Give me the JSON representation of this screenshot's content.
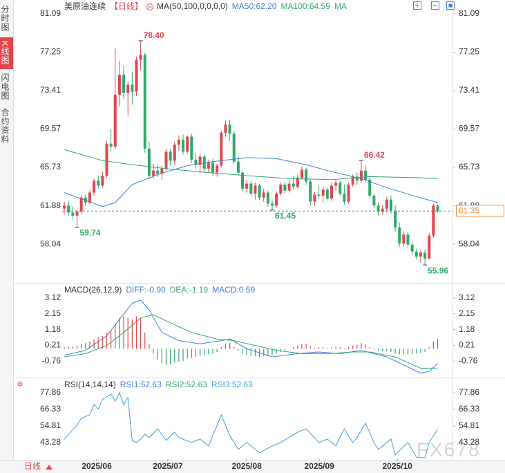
{
  "sidebar_tabs": [
    "分时图",
    "K线图",
    "闪电图",
    "合约资料"
  ],
  "bottom_bar": {
    "period": "日线"
  },
  "watermark": "FX678",
  "chart_data": [
    {
      "type": "candlestick",
      "title": "美原油连续",
      "period_tag": "【日线】",
      "ma_label": "MA(50,100,0,0,0,0)",
      "ma_more": "MA",
      "up_color": "#e0464e",
      "down_color": "#2fa86a",
      "xlim": [
        -11.9,
        91.5
      ],
      "ylim": [
        54.24,
        81.23
      ],
      "yticks": [
        81.09,
        77.25,
        73.41,
        69.57,
        65.73,
        61.88,
        58.04
      ],
      "candles": [
        [
          61.6,
          62.3,
          61.0,
          61.9
        ],
        [
          61.9,
          62.4,
          60.9,
          61.2
        ],
        [
          61.2,
          61.8,
          60.5,
          60.9
        ],
        [
          60.9,
          61.5,
          59.74,
          61.3
        ],
        [
          61.3,
          62.9,
          61.1,
          62.7
        ],
        [
          62.7,
          63.0,
          61.9,
          62.2
        ],
        [
          62.2,
          63.4,
          62.0,
          63.2
        ],
        [
          63.2,
          64.6,
          62.9,
          64.4
        ],
        [
          64.4,
          64.9,
          63.6,
          63.9
        ],
        [
          63.9,
          65.3,
          63.7,
          64.9
        ],
        [
          64.9,
          68.4,
          64.7,
          68.1
        ],
        [
          68.1,
          69.6,
          67.3,
          67.8
        ],
        [
          67.8,
          77.6,
          67.5,
          73.0
        ],
        [
          73.0,
          76.4,
          71.8,
          75.0
        ],
        [
          75.0,
          75.9,
          72.6,
          73.2
        ],
        [
          73.2,
          74.3,
          70.9,
          74.0
        ],
        [
          74.0,
          75.3,
          72.0,
          73.3
        ],
        [
          73.3,
          76.8,
          72.9,
          76.5
        ],
        [
          76.5,
          78.4,
          75.4,
          77.0
        ],
        [
          77.0,
          77.2,
          67.2,
          67.6
        ],
        [
          67.6,
          68.3,
          64.5,
          64.9
        ],
        [
          64.9,
          66.1,
          64.6,
          65.4
        ],
        [
          65.4,
          66.0,
          64.8,
          65.1
        ],
        [
          65.1,
          65.9,
          64.5,
          65.6
        ],
        [
          65.6,
          67.6,
          65.4,
          67.3
        ],
        [
          67.3,
          67.6,
          65.9,
          66.4
        ],
        [
          66.4,
          68.3,
          66.0,
          68.0
        ],
        [
          68.0,
          68.9,
          67.4,
          68.5
        ],
        [
          68.5,
          69.0,
          67.0,
          67.3
        ],
        [
          67.3,
          68.9,
          67.1,
          68.8
        ],
        [
          68.8,
          69.1,
          66.2,
          66.5
        ],
        [
          66.5,
          67.2,
          65.6,
          66.0
        ],
        [
          66.0,
          67.1,
          65.1,
          66.8
        ],
        [
          66.8,
          67.0,
          65.2,
          65.6
        ],
        [
          65.6,
          66.5,
          65.2,
          66.2
        ],
        [
          66.2,
          66.6,
          64.9,
          65.2
        ],
        [
          65.2,
          66.1,
          64.8,
          65.9
        ],
        [
          65.9,
          69.4,
          65.7,
          69.2
        ],
        [
          69.2,
          70.4,
          68.8,
          70.0
        ],
        [
          70.0,
          70.5,
          68.4,
          69.1
        ],
        [
          69.1,
          69.4,
          66.0,
          66.3
        ],
        [
          66.3,
          66.8,
          64.9,
          65.2
        ],
        [
          65.2,
          65.4,
          63.3,
          63.6
        ],
        [
          63.6,
          64.5,
          63.2,
          64.1
        ],
        [
          64.1,
          64.4,
          62.8,
          63.1
        ],
        [
          63.1,
          64.2,
          62.5,
          63.9
        ],
        [
          63.9,
          64.1,
          62.5,
          62.7
        ],
        [
          62.7,
          63.6,
          62.3,
          63.2
        ],
        [
          63.2,
          63.4,
          61.8,
          62.1
        ],
        [
          62.1,
          62.4,
          61.45,
          61.9
        ],
        [
          61.9,
          63.3,
          61.7,
          63.1
        ],
        [
          63.1,
          64.2,
          62.9,
          64.0
        ],
        [
          64.0,
          64.3,
          63.1,
          63.4
        ],
        [
          63.4,
          64.5,
          63.2,
          64.1
        ],
        [
          64.1,
          64.9,
          63.5,
          63.8
        ],
        [
          63.8,
          65.0,
          63.6,
          64.7
        ],
        [
          64.7,
          65.8,
          64.5,
          65.5
        ],
        [
          65.5,
          65.7,
          64.0,
          64.3
        ],
        [
          64.3,
          64.6,
          61.9,
          62.3
        ],
        [
          62.3,
          63.3,
          61.9,
          63.0
        ],
        [
          63.0,
          63.9,
          62.6,
          62.9
        ],
        [
          62.9,
          63.8,
          62.2,
          63.5
        ],
        [
          63.5,
          63.7,
          62.4,
          62.6
        ],
        [
          62.6,
          64.2,
          62.4,
          63.9
        ],
        [
          63.9,
          64.5,
          63.4,
          64.2
        ],
        [
          64.2,
          64.4,
          62.9,
          63.1
        ],
        [
          63.1,
          64.0,
          62.0,
          62.3
        ],
        [
          62.3,
          64.2,
          62.1,
          64.0
        ],
        [
          64.0,
          65.0,
          63.8,
          64.8
        ],
        [
          64.8,
          65.2,
          64.0,
          64.4
        ],
        [
          64.4,
          66.42,
          64.2,
          65.4
        ],
        [
          65.4,
          65.9,
          64.2,
          64.5
        ],
        [
          64.5,
          64.8,
          62.6,
          62.9
        ],
        [
          62.9,
          63.1,
          61.6,
          61.9
        ],
        [
          61.9,
          62.2,
          60.9,
          61.3
        ],
        [
          61.3,
          62.0,
          61.0,
          61.6
        ],
        [
          61.6,
          62.8,
          61.2,
          62.5
        ],
        [
          62.5,
          62.9,
          61.1,
          61.4
        ],
        [
          61.4,
          61.9,
          59.3,
          59.7
        ],
        [
          59.7,
          60.2,
          57.8,
          58.1
        ],
        [
          58.1,
          59.3,
          57.8,
          59.0
        ],
        [
          59.0,
          59.3,
          57.7,
          58.0
        ],
        [
          58.0,
          58.3,
          57.0,
          57.3
        ],
        [
          57.3,
          57.6,
          56.5,
          56.8
        ],
        [
          56.8,
          57.4,
          56.2,
          57.2
        ],
        [
          57.2,
          57.5,
          55.96,
          56.6
        ],
        [
          56.6,
          59.2,
          56.5,
          58.9
        ],
        [
          58.9,
          62.1,
          58.7,
          61.9
        ],
        [
          61.9,
          62.0,
          61.2,
          61.35
        ]
      ],
      "annotations": [
        {
          "x": 18,
          "value": 78.4,
          "label": "78.40"
        },
        {
          "x": 3,
          "value": 59.74,
          "label": "59.74"
        },
        {
          "x": 49,
          "value": 61.45,
          "label": "61.45"
        },
        {
          "x": 70,
          "value": 66.42,
          "label": "66.42"
        },
        {
          "x": 85,
          "value": 55.96,
          "label": "55.96"
        }
      ],
      "series": [
        {
          "name": "MA50:62.20",
          "color": "#3d7fd6",
          "x": [
            0,
            9,
            12,
            16,
            22,
            29,
            35,
            43,
            50,
            57,
            63,
            70,
            76,
            83,
            88
          ],
          "values": [
            63.2,
            61.8,
            62.2,
            64.0,
            65.0,
            65.9,
            66.3,
            66.7,
            66.6,
            66.0,
            65.3,
            64.6,
            63.7,
            62.8,
            62.2
          ]
        },
        {
          "name": "MA100:64.59",
          "color": "#2fa86a",
          "x": [
            0,
            9,
            16,
            24,
            34,
            43,
            53,
            63,
            72,
            83,
            88
          ],
          "values": [
            67.5,
            66.4,
            66.0,
            65.6,
            65.2,
            64.9,
            64.6,
            64.5,
            64.8,
            64.7,
            64.59
          ]
        }
      ]
    },
    {
      "type": "macd",
      "title": "MACD(26,12,9)",
      "xlim": [
        -11.9,
        91.5
      ],
      "ylim": [
        -1.73,
        3.93
      ],
      "yticks": [
        3.12,
        2.15,
        1.18,
        0.21,
        -0.76
      ],
      "histogram_name": "MACD:0.59",
      "histogram_color": "#3d7fd6",
      "up_color": "#e0464e",
      "down_color": "#2fa86a",
      "histogram": [
        0.1,
        0.15,
        0.12,
        0.2,
        0.3,
        0.35,
        0.45,
        0.6,
        0.7,
        0.8,
        1.0,
        1.1,
        1.5,
        1.9,
        2.0,
        1.9,
        1.8,
        2.0,
        1.9,
        1.0,
        0.3,
        -0.3,
        -0.7,
        -0.9,
        -1.0,
        -0.95,
        -0.85,
        -0.8,
        -0.75,
        -0.6,
        -0.55,
        -0.5,
        -0.45,
        -0.4,
        -0.35,
        -0.3,
        -0.2,
        0.1,
        0.3,
        0.35,
        0.1,
        -0.1,
        -0.3,
        -0.4,
        -0.45,
        -0.45,
        -0.5,
        -0.45,
        -0.45,
        -0.4,
        -0.3,
        -0.2,
        -0.1,
        0.0,
        0.1,
        0.2,
        0.3,
        0.3,
        0.15,
        0.05,
        0.1,
        0.1,
        0.05,
        0.1,
        0.15,
        0.1,
        0.05,
        0.1,
        0.2,
        0.25,
        0.35,
        0.25,
        0.1,
        -0.05,
        -0.1,
        -0.15,
        -0.15,
        -0.2,
        -0.3,
        -0.35,
        -0.35,
        -0.35,
        -0.35,
        -0.3,
        -0.25,
        -0.2,
        0.1,
        0.45,
        0.59
      ],
      "series": [
        {
          "name": "DIFF:-0.90",
          "color": "#3d7fd6",
          "x": [
            0,
            5,
            10,
            13,
            16,
            18,
            20,
            23,
            27,
            32,
            37,
            39,
            43,
            49,
            55,
            60,
            65,
            70,
            76,
            80,
            84,
            86,
            88
          ],
          "values": [
            -0.4,
            -0.1,
            0.8,
            1.8,
            2.8,
            3.0,
            2.4,
            1.0,
            0.5,
            0.3,
            0.5,
            0.6,
            0.0,
            -0.5,
            -0.3,
            -0.2,
            -0.3,
            -0.1,
            -0.5,
            -1.0,
            -1.5,
            -1.4,
            -0.9
          ]
        },
        {
          "name": "DEA:-1.19",
          "color": "#2fa86a",
          "x": [
            0,
            5,
            10,
            14,
            18,
            21,
            25,
            30,
            36,
            40,
            45,
            50,
            56,
            62,
            68,
            72,
            78,
            84,
            88
          ],
          "values": [
            -0.5,
            -0.3,
            0.2,
            1.0,
            1.9,
            2.1,
            1.6,
            1.0,
            0.6,
            0.5,
            0.2,
            -0.1,
            -0.3,
            -0.3,
            -0.2,
            -0.2,
            -0.5,
            -1.2,
            -1.19
          ]
        }
      ]
    },
    {
      "type": "rsi",
      "title": "RSI(14,14,14)",
      "xlim": [
        -11.9,
        91.5
      ],
      "ylim": [
        31.74,
        87.47
      ],
      "yticks": [
        77.86,
        66.33,
        54.81,
        43.28
      ],
      "legend": [
        {
          "name": "RSI1:52.63",
          "color": "#3d7fd6"
        },
        {
          "name": "RSI2:52.63",
          "color": "#2fa86a"
        },
        {
          "name": "RSI3:52.63",
          "color": "#3d9fd6"
        }
      ],
      "xticks": [
        {
          "value": 7.65,
          "label": "2025/06"
        },
        {
          "value": 24.4,
          "label": "2025/07"
        },
        {
          "value": 43.0,
          "label": "2025/08"
        },
        {
          "value": 60.1,
          "label": "2025/09"
        },
        {
          "value": 78.5,
          "label": "2025/10"
        }
      ],
      "series": [
        {
          "name": "RSI1:52.63",
          "color": "#3d9fd6",
          "x": [
            0,
            1,
            3,
            4,
            6,
            7,
            8,
            9,
            11,
            12,
            13,
            14,
            15,
            16,
            17,
            18,
            19,
            20,
            22,
            24,
            26,
            27,
            30,
            32,
            34,
            37,
            39,
            41,
            43,
            46,
            49,
            51,
            55,
            57,
            60,
            62,
            64,
            66,
            68,
            69,
            71,
            73,
            74,
            77,
            78,
            81,
            83,
            85,
            86,
            88
          ],
          "values": [
            45.6,
            49.1,
            55.4,
            60.2,
            62.6,
            69.9,
            66.5,
            73.2,
            77.0,
            72.1,
            77.9,
            69.7,
            74.5,
            44.7,
            43.3,
            45.7,
            49.1,
            46.7,
            52.9,
            44.7,
            50.5,
            46.7,
            43.3,
            45.7,
            40.9,
            62.5,
            48.1,
            38.5,
            43.3,
            36.2,
            40.9,
            43.3,
            50.5,
            52.9,
            43.3,
            45.7,
            40.9,
            52.9,
            43.3,
            46.7,
            56.8,
            43.3,
            38.5,
            45.7,
            34.7,
            43.3,
            33.1,
            32.6,
            43.3,
            52.63
          ]
        }
      ]
    }
  ]
}
